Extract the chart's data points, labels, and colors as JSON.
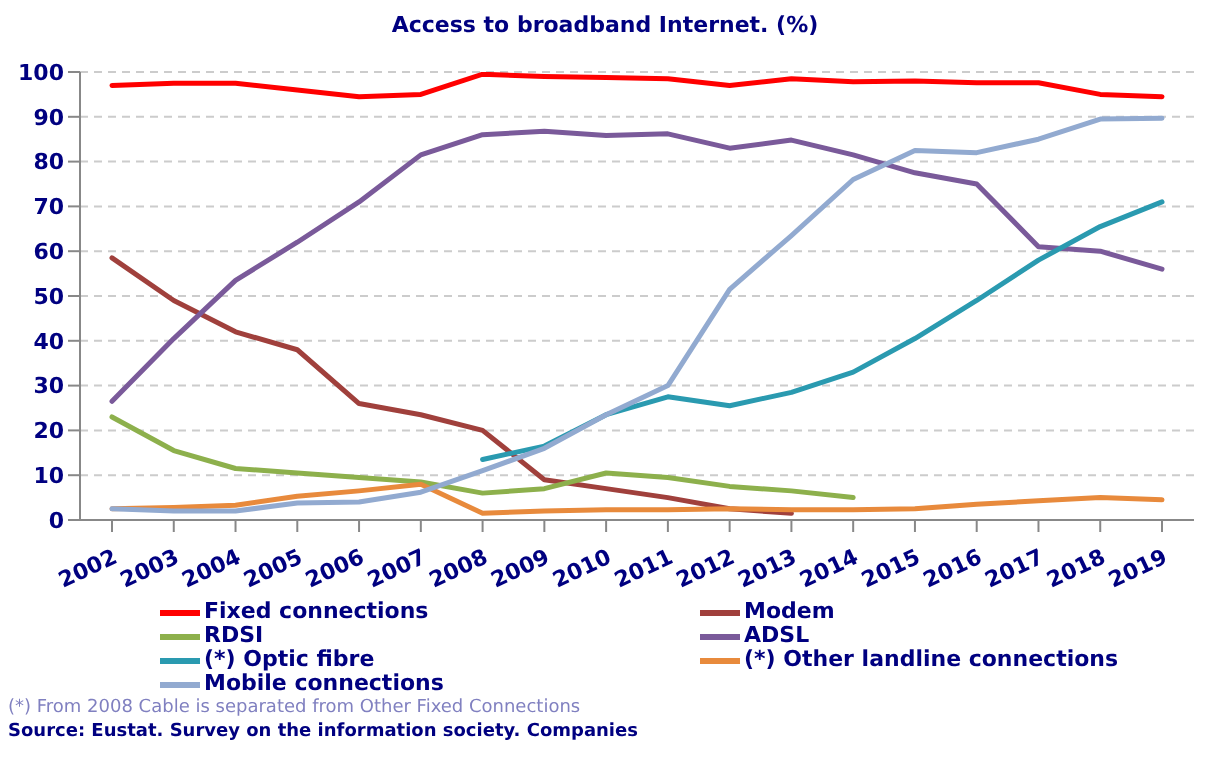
{
  "chart_data": {
    "type": "line",
    "title": "Access to broadband Internet. (%)",
    "categories": [
      "2002",
      "2003",
      "2004",
      "2005",
      "2006",
      "2007",
      "2008",
      "2009",
      "2010",
      "2011",
      "2012",
      "2013",
      "2014",
      "2015",
      "2016",
      "2017",
      "2018",
      "2019"
    ],
    "series": [
      {
        "name": "Fixed connections",
        "color": "#ff0000",
        "values": [
          97,
          97.5,
          97.5,
          96,
          94.5,
          95,
          99.5,
          99,
          98.8,
          98.5,
          97,
          98.5,
          97.8,
          98,
          97.6,
          97.6,
          95,
          94.5
        ]
      },
      {
        "name": "Modem",
        "color": "#a0403c",
        "values": [
          58.5,
          49,
          42,
          38,
          26,
          23.5,
          20,
          9,
          7,
          5,
          2.5,
          1.5,
          null,
          null,
          null,
          null,
          null,
          null
        ]
      },
      {
        "name": "RDSI",
        "color": "#8db04c",
        "values": [
          23,
          15.5,
          11.5,
          10.5,
          9.5,
          8.5,
          6,
          7,
          10.5,
          9.5,
          7.5,
          6.5,
          5,
          null,
          null,
          null,
          null,
          null
        ]
      },
      {
        "name": "ADSL",
        "color": "#7a5a9a",
        "values": [
          26.5,
          40.5,
          53.5,
          62,
          71,
          81.5,
          86,
          86.8,
          85.8,
          86.2,
          83,
          84.8,
          81.5,
          77.5,
          75,
          61,
          60,
          56
        ]
      },
      {
        "name": "(*) Optic fibre",
        "color": "#2a9ab0",
        "values": [
          null,
          null,
          null,
          null,
          null,
          null,
          13.5,
          16.5,
          23.5,
          27.5,
          25.5,
          28.5,
          33,
          40.5,
          49,
          58,
          65.5,
          71
        ]
      },
      {
        "name": "(*) Other landline connections",
        "color": "#e88a3c",
        "values": [
          2.5,
          2.8,
          3.3,
          5.3,
          6.5,
          8,
          1.5,
          2,
          2.3,
          2.3,
          2.5,
          2.3,
          2.3,
          2.5,
          3.5,
          4.3,
          5,
          4.5
        ]
      },
      {
        "name": "Mobile connections",
        "color": "#92aad0",
        "values": [
          2.5,
          2,
          2,
          3.8,
          4,
          6.2,
          11,
          16,
          23.5,
          30,
          51.5,
          63.5,
          76,
          82.5,
          82,
          85,
          89.5,
          89.7
        ]
      }
    ],
    "ylim": [
      0,
      100
    ],
    "yticks": [
      0,
      10,
      20,
      30,
      40,
      50,
      60,
      70,
      80,
      90,
      100
    ],
    "grid": "y",
    "legend": "bottom",
    "marker": "none",
    "line_style": "solid",
    "annotations": [
      "(*) From 2008 Cable is separated from Other Fixed Connections",
      "Source: Eustat. Survey on the information society. Companies"
    ]
  }
}
